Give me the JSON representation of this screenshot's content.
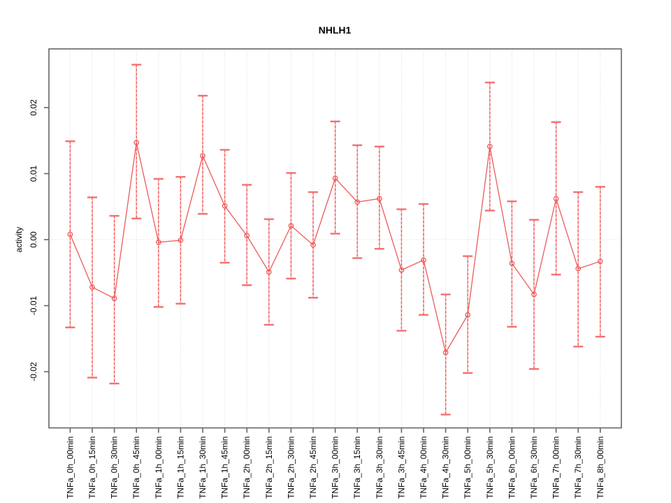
{
  "chart_data": {
    "type": "line",
    "title": "NHLH1",
    "xlabel": "",
    "ylabel": "activity",
    "legend": "none",
    "grid": "vertical dotted line at every category; horizontal dotted line at 0.00",
    "categories": [
      "TNFa_0h_00min",
      "TNFa_0h_15min",
      "TNFa_0h_30min",
      "TNFa_0h_45min",
      "TNFa_1h_00min",
      "TNFa_1h_15min",
      "TNFa_1h_30min",
      "TNFa_1h_45min",
      "TNFa_2h_00min",
      "TNFa_2h_15min",
      "TNFa_2h_30min",
      "TNFa_2h_45min",
      "TNFa_3h_00min",
      "TNFa_3h_15min",
      "TNFa_3h_30min",
      "TNFa_3h_45min",
      "TNFa_4h_00min",
      "TNFa_4h_30min",
      "TNFa_5h_00min",
      "TNFa_5h_30min",
      "TNFa_6h_00min",
      "TNFa_6h_30min",
      "TNFa_7h_00min",
      "TNFa_7h_30min",
      "TNFa_8h_00min"
    ],
    "series": [
      {
        "name": "activity",
        "values": [
          0.0008,
          -0.0072,
          -0.0089,
          0.0147,
          -0.0004,
          -0.0001,
          0.0127,
          0.0051,
          0.0006,
          -0.0049,
          0.0021,
          -0.0008,
          0.0093,
          0.0057,
          0.0062,
          -0.0046,
          -0.0031,
          -0.0171,
          -0.0114,
          0.0141,
          -0.0036,
          -0.0083,
          0.0062,
          -0.0044,
          -0.0033
        ],
        "upper": [
          0.0149,
          0.0064,
          0.0036,
          0.0265,
          0.0092,
          0.0095,
          0.0218,
          0.0136,
          0.0083,
          0.0031,
          0.0101,
          0.0072,
          0.0179,
          0.0143,
          0.0141,
          0.0046,
          0.0054,
          -0.0083,
          -0.0025,
          0.0238,
          0.0058,
          0.003,
          0.0178,
          0.0072,
          0.008
        ],
        "lower": [
          -0.0133,
          -0.0209,
          -0.0218,
          0.0032,
          -0.0102,
          -0.0097,
          0.0039,
          -0.0035,
          -0.0069,
          -0.0129,
          -0.0059,
          -0.0088,
          0.0009,
          -0.0028,
          -0.0014,
          -0.0138,
          -0.0114,
          -0.0265,
          -0.0202,
          0.0044,
          -0.0132,
          -0.0196,
          -0.0053,
          -0.0162,
          -0.0147
        ]
      }
    ],
    "yticks": [
      -0.02,
      -0.01,
      0,
      0.01,
      0.02
    ],
    "ytick_labels": [
      "-0.02",
      "-0.01",
      "0.00",
      "0.01",
      "0.02"
    ],
    "ylim": [
      -0.0285,
      0.0289
    ],
    "colors": {
      "series": "#ee5a5a",
      "error_bar": "#ef4b4b",
      "error_bar_light": "#f7b2b2",
      "cap": "#f37070",
      "grid": "#d9d9d9",
      "axis_box": "#666666",
      "text": "#000000"
    }
  }
}
